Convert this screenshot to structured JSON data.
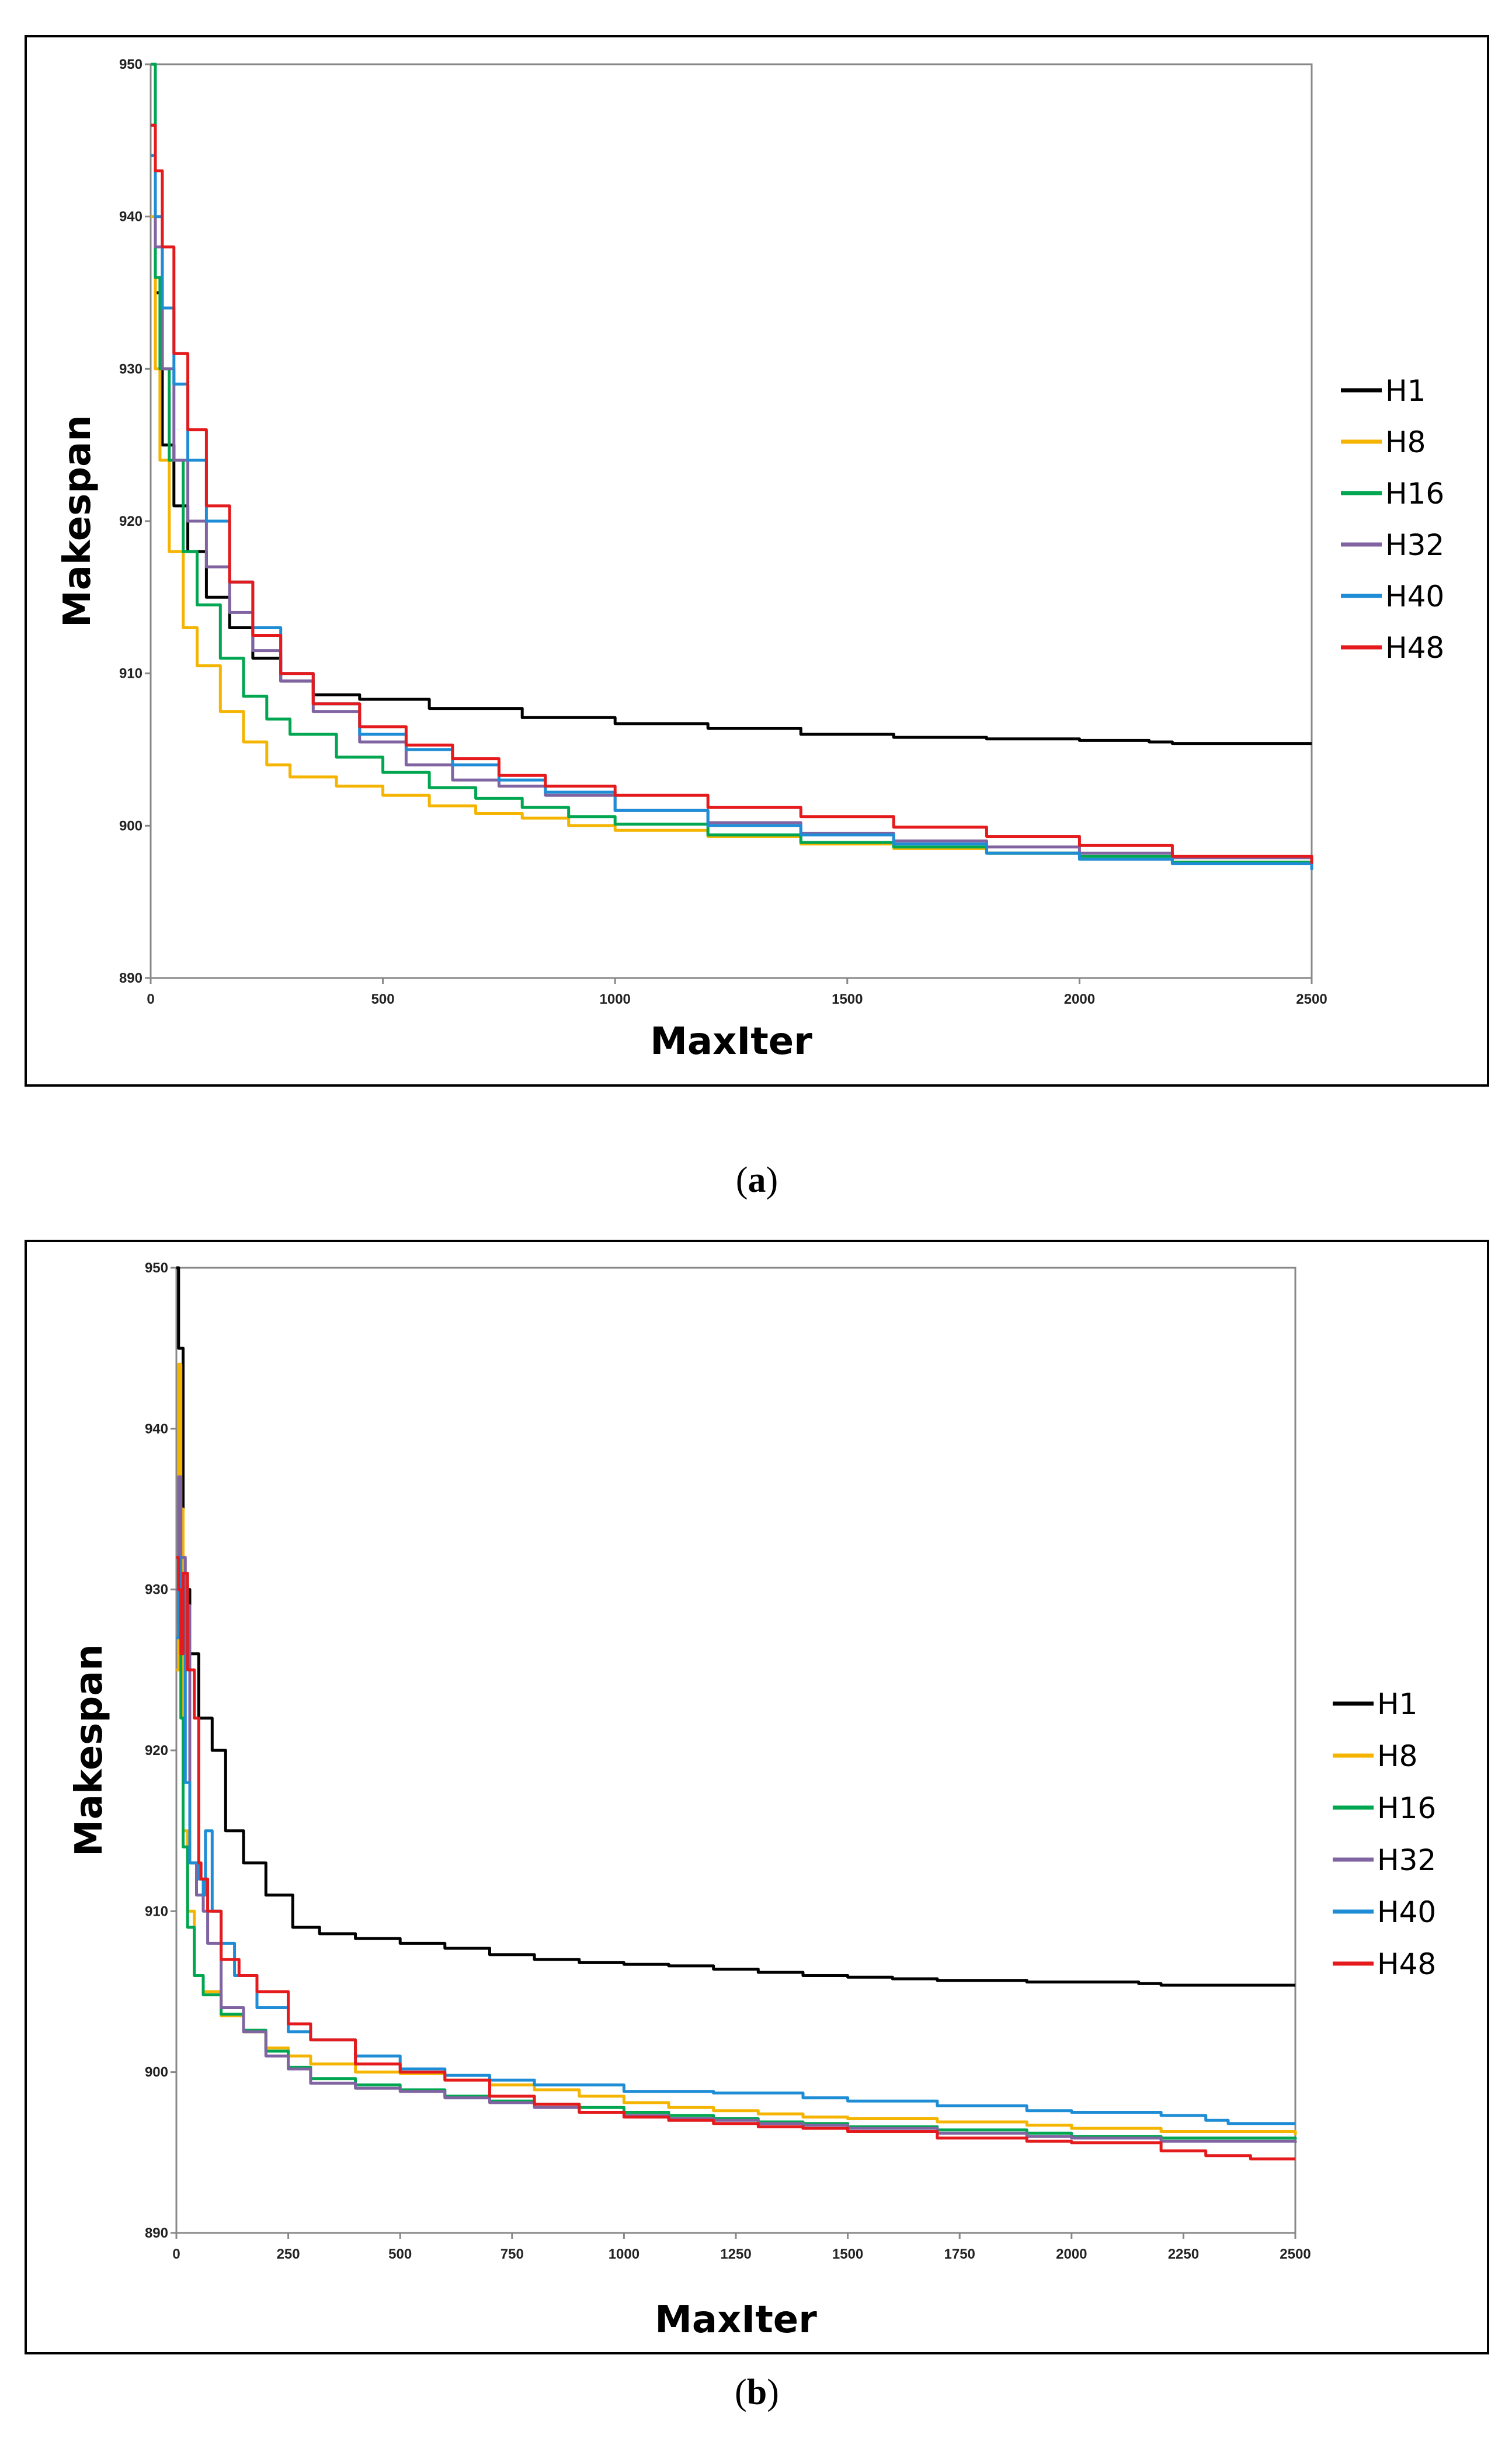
{
  "chart_data": [
    {
      "type": "line",
      "caption": "a",
      "xlabel": "MaxIter",
      "ylabel": "Makespan",
      "xlim": [
        0,
        2500
      ],
      "ylim": [
        890,
        950
      ],
      "xticks": [
        0,
        500,
        1000,
        1500,
        2000,
        2500
      ],
      "yticks": [
        890,
        900,
        910,
        920,
        930,
        940,
        950
      ],
      "grid": false,
      "legend_position": "right",
      "series": [
        {
          "name": "H1",
          "color": "#000000",
          "x": [
            0,
            10,
            25,
            50,
            80,
            120,
            170,
            220,
            280,
            350,
            450,
            600,
            800,
            1000,
            1200,
            1400,
            1600,
            1800,
            2000,
            2150,
            2200,
            2500
          ],
          "y": [
            950,
            935,
            925,
            921,
            918,
            915,
            913,
            911,
            909.5,
            908.6,
            908.3,
            907.7,
            907.1,
            906.7,
            906.4,
            906.0,
            905.8,
            905.7,
            905.6,
            905.5,
            905.4,
            905.4
          ]
        },
        {
          "name": "H8",
          "color": "#F4B400",
          "x": [
            0,
            10,
            20,
            40,
            70,
            100,
            150,
            200,
            250,
            300,
            400,
            500,
            600,
            700,
            800,
            900,
            1000,
            1200,
            1400,
            1600,
            1800,
            2000,
            2200,
            2500
          ],
          "y": [
            940,
            930,
            924,
            918,
            913,
            910.5,
            907.5,
            905.5,
            904,
            903.2,
            902.6,
            902.0,
            901.3,
            900.8,
            900.5,
            900.0,
            899.7,
            899.3,
            898.8,
            898.5,
            898.2,
            898.0,
            897.6,
            897.4
          ]
        },
        {
          "name": "H16",
          "color": "#00A650",
          "x": [
            0,
            10,
            20,
            40,
            70,
            100,
            150,
            200,
            250,
            300,
            400,
            500,
            600,
            700,
            800,
            900,
            1000,
            1200,
            1400,
            1600,
            1800,
            2000,
            2200,
            2500
          ],
          "y": [
            950,
            936,
            930,
            924,
            918,
            914.5,
            911,
            908.5,
            907,
            906,
            904.5,
            903.5,
            902.5,
            901.8,
            901.2,
            900.6,
            900.1,
            899.4,
            898.9,
            898.6,
            898.2,
            898.0,
            897.6,
            897.4
          ]
        },
        {
          "name": "H32",
          "color": "#8064A2",
          "x": [
            0,
            10,
            25,
            50,
            80,
            120,
            170,
            220,
            280,
            350,
            450,
            550,
            650,
            750,
            850,
            1000,
            1200,
            1400,
            1600,
            1800,
            2000,
            2200,
            2500
          ],
          "y": [
            946,
            938,
            930,
            924,
            920,
            917,
            914,
            911.5,
            909.5,
            907.5,
            905.5,
            904,
            903,
            902.6,
            902.0,
            901.0,
            900.2,
            899.5,
            899.0,
            898.6,
            898.2,
            897.9,
            897.8
          ]
        },
        {
          "name": "H40",
          "color": "#1F8DD6",
          "x": [
            0,
            10,
            25,
            50,
            80,
            120,
            170,
            220,
            280,
            350,
            450,
            550,
            650,
            750,
            850,
            1000,
            1200,
            1400,
            1600,
            1800,
            2000,
            2200,
            2500
          ],
          "y": [
            944,
            940,
            934,
            929,
            924,
            920,
            916,
            913,
            910,
            908,
            906,
            905,
            904,
            903,
            902.2,
            901.0,
            900.0,
            899.4,
            898.8,
            898.2,
            897.8,
            897.5,
            897.1
          ]
        },
        {
          "name": "H48",
          "color": "#E41A1C",
          "x": [
            0,
            10,
            25,
            50,
            80,
            120,
            170,
            220,
            280,
            350,
            450,
            550,
            650,
            750,
            850,
            1000,
            1200,
            1400,
            1600,
            1800,
            2000,
            2200,
            2500
          ],
          "y": [
            946,
            943,
            938,
            931,
            926,
            921,
            916,
            912.5,
            910,
            908,
            906.5,
            905.3,
            904.4,
            903.3,
            902.6,
            902.0,
            901.2,
            900.6,
            899.9,
            899.3,
            898.7,
            898.0,
            897.5
          ]
        }
      ]
    },
    {
      "type": "line",
      "caption": "b",
      "xlabel": "MaxIter",
      "ylabel": "Makespan",
      "xlim": [
        0,
        2500
      ],
      "ylim": [
        890,
        950
      ],
      "xticks": [
        0,
        250,
        500,
        750,
        1000,
        1250,
        1500,
        1750,
        2000,
        2250,
        2500
      ],
      "yticks": [
        890,
        900,
        910,
        920,
        930,
        940,
        950
      ],
      "grid": false,
      "legend_position": "right",
      "series": [
        {
          "name": "H1",
          "color": "#000000",
          "x": [
            0,
            5,
            15,
            30,
            50,
            80,
            110,
            150,
            200,
            260,
            320,
            400,
            500,
            600,
            700,
            800,
            900,
            1000,
            1100,
            1200,
            1300,
            1400,
            1500,
            1600,
            1700,
            1800,
            1900,
            2000,
            2100,
            2150,
            2200,
            2500
          ],
          "y": [
            950,
            945,
            930,
            926,
            922,
            920,
            915,
            913,
            911,
            909,
            908.6,
            908.3,
            908.0,
            907.7,
            907.3,
            907.0,
            906.8,
            906.7,
            906.6,
            906.4,
            906.2,
            906.0,
            905.9,
            905.8,
            905.7,
            905.7,
            905.6,
            905.6,
            905.6,
            905.5,
            905.4,
            905.4
          ]
        },
        {
          "name": "H8",
          "color": "#F4B400",
          "x": [
            0,
            5,
            10,
            15,
            25,
            40,
            60,
            100,
            150,
            200,
            250,
            300,
            400,
            500,
            600,
            700,
            800,
            900,
            1000,
            1100,
            1200,
            1300,
            1400,
            1500,
            1700,
            1900,
            2000,
            2200,
            2500
          ],
          "y": [
            925,
            944,
            935,
            915,
            910,
            906,
            905,
            903.5,
            902.5,
            901.5,
            901,
            900.5,
            900.0,
            899.9,
            899.5,
            899.2,
            898.9,
            898.5,
            898.1,
            897.8,
            897.6,
            897.4,
            897.2,
            897.1,
            896.9,
            896.7,
            896.5,
            896.3,
            896.1
          ]
        },
        {
          "name": "H16",
          "color": "#00A650",
          "x": [
            0,
            5,
            10,
            15,
            25,
            40,
            60,
            100,
            150,
            200,
            250,
            300,
            400,
            500,
            600,
            700,
            800,
            900,
            1000,
            1100,
            1200,
            1300,
            1400,
            1500,
            1700,
            1900,
            2000,
            2200,
            2500
          ],
          "y": [
            930,
            928,
            922,
            914,
            909,
            906,
            904.8,
            903.6,
            902.6,
            901.3,
            900.3,
            899.6,
            899.2,
            898.9,
            898.5,
            898.2,
            898.0,
            897.8,
            897.5,
            897.3,
            897.1,
            896.9,
            896.8,
            896.6,
            896.4,
            896.2,
            896.0,
            895.9,
            895.8
          ]
        },
        {
          "name": "H32",
          "color": "#8064A2",
          "x": [
            0,
            5,
            10,
            20,
            30,
            45,
            60,
            70,
            100,
            150,
            200,
            250,
            300,
            400,
            500,
            600,
            700,
            800,
            900,
            1000,
            1100,
            1200,
            1300,
            1400,
            1500,
            1700,
            1900,
            2000,
            2200,
            2500
          ],
          "y": [
            930,
            937,
            932,
            929,
            913,
            911,
            910,
            908,
            904,
            902.5,
            901.0,
            900.2,
            899.3,
            899.0,
            898.8,
            898.4,
            898.1,
            897.8,
            897.5,
            897.3,
            897.1,
            897.0,
            896.8,
            896.7,
            896.5,
            896.2,
            896.0,
            895.9,
            895.7,
            895.6
          ]
        },
        {
          "name": "H40",
          "color": "#1F8DD6",
          "x": [
            0,
            5,
            10,
            20,
            30,
            50,
            60,
            65,
            80,
            100,
            130,
            180,
            250,
            300,
            400,
            500,
            600,
            700,
            800,
            1000,
            1200,
            1400,
            1500,
            1700,
            1900,
            2000,
            2200,
            2300,
            2350,
            2500
          ],
          "y": [
            927,
            932,
            930,
            918,
            913,
            912,
            911,
            915,
            910,
            908,
            906,
            904,
            902.5,
            902.0,
            901.0,
            900.2,
            899.8,
            899.5,
            899.2,
            898.8,
            898.7,
            898.4,
            898.2,
            897.9,
            897.6,
            897.5,
            897.3,
            897.0,
            896.8,
            896.8
          ]
        },
        {
          "name": "H48",
          "color": "#E41A1C",
          "x": [
            0,
            5,
            10,
            15,
            25,
            40,
            50,
            55,
            70,
            100,
            140,
            180,
            250,
            300,
            400,
            500,
            600,
            700,
            800,
            900,
            1000,
            1100,
            1200,
            1300,
            1400,
            1500,
            1700,
            1900,
            2000,
            2200,
            2300,
            2400,
            2500
          ],
          "y": [
            932,
            930,
            926,
            931,
            925,
            922,
            913,
            912,
            910,
            907,
            906,
            905,
            903,
            902,
            900.5,
            900.0,
            899.5,
            898.5,
            898.0,
            897.5,
            897.2,
            897.0,
            896.8,
            896.6,
            896.5,
            896.3,
            895.9,
            895.7,
            895.6,
            895.1,
            894.8,
            894.6,
            894.6
          ]
        }
      ]
    }
  ]
}
